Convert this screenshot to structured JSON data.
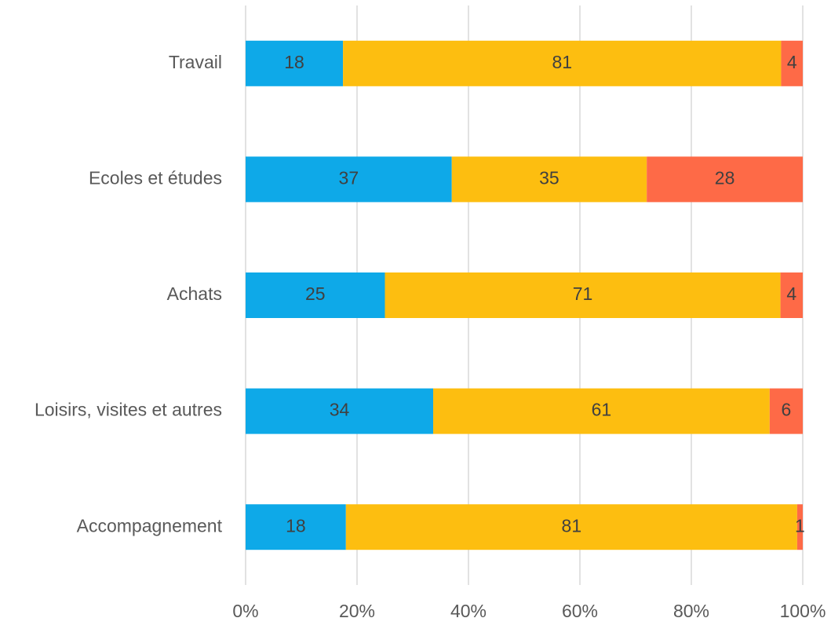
{
  "chart_data": {
    "type": "stacked100_barh",
    "categories": [
      "Travail",
      "Ecoles et études",
      "Achats",
      "Loisirs, visites et autres",
      "Accompagnement"
    ],
    "series": [
      {
        "color": "#0ea9e8",
        "values": [
          18,
          37,
          25,
          34,
          18
        ]
      },
      {
        "color": "#fdbe10",
        "values": [
          81,
          35,
          71,
          61,
          81
        ]
      },
      {
        "color": "#fe6a47",
        "values": [
          4,
          28,
          4,
          6,
          1
        ]
      }
    ],
    "xlim": [
      0,
      100
    ],
    "xticks": [
      {
        "value": 0,
        "label": "0%"
      },
      {
        "value": 20,
        "label": "20%"
      },
      {
        "value": 40,
        "label": "40%"
      },
      {
        "value": 60,
        "label": "60%"
      },
      {
        "value": 80,
        "label": "80%"
      },
      {
        "value": 100,
        "label": "100%"
      }
    ],
    "grid": true
  }
}
